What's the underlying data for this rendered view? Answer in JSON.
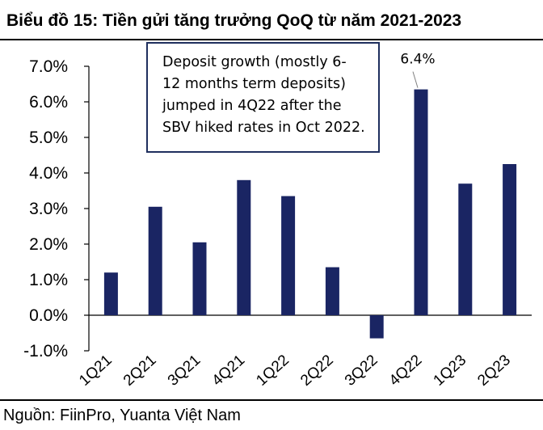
{
  "title": "Biểu đồ 15: Tiền gửi tăng trưởng QoQ từ năm 2021-2023",
  "source": "Nguồn: FiinPro, Yuanta Việt Nam",
  "annotation": {
    "lines": [
      "Deposit growth (mostly 6-",
      "12 months term deposits)",
      "jumped in 4Q22 after the",
      "SBV hiked rates in Oct 2022."
    ]
  },
  "colors": {
    "bar": "#1a2563",
    "axis": "#000000",
    "annotation_border": "#1f2f5e"
  },
  "chart_data": {
    "type": "bar",
    "categories": [
      "1Q21",
      "2Q21",
      "3Q21",
      "4Q21",
      "1Q22",
      "2Q22",
      "3Q22",
      "4Q22",
      "1Q23",
      "2Q23"
    ],
    "values": [
      1.2,
      3.05,
      2.05,
      3.8,
      3.35,
      1.35,
      -0.65,
      6.35,
      3.7,
      4.25
    ],
    "value_unit": "%",
    "ylim": [
      -1.0,
      7.0
    ],
    "yticks": [
      -1.0,
      0.0,
      1.0,
      2.0,
      3.0,
      4.0,
      5.0,
      6.0,
      7.0
    ],
    "ytick_labels": [
      "-1.0%",
      "0.0%",
      "1.0%",
      "2.0%",
      "3.0%",
      "4.0%",
      "5.0%",
      "6.0%",
      "7.0%"
    ],
    "data_labels": [
      {
        "category": "4Q22",
        "text": "6.4%"
      }
    ],
    "grid": false,
    "legend": "none"
  }
}
